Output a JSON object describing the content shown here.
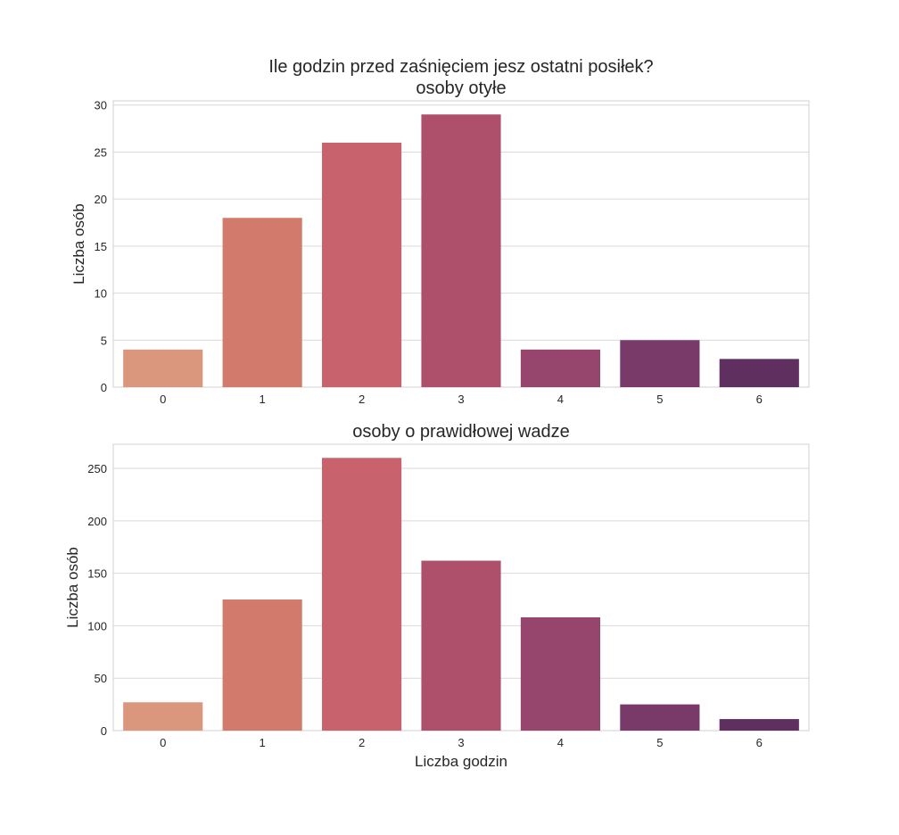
{
  "figure": {
    "suptitle_line1": "Ile godzin przed zaśnięciem jesz ostatni posiłek?"
  },
  "chart_data": [
    {
      "type": "bar",
      "title": "osoby otyłe",
      "xlabel": "",
      "ylabel": "Liczba osób",
      "categories": [
        "0",
        "1",
        "2",
        "3",
        "4",
        "5",
        "6"
      ],
      "values": [
        4,
        18,
        26,
        29,
        4,
        5,
        3
      ],
      "yticks": [
        0,
        5,
        10,
        15,
        20,
        25,
        30
      ],
      "ylim": [
        0,
        30.45
      ],
      "grid": true,
      "colors": [
        "#db977d",
        "#d27b6c",
        "#c8626c",
        "#ae4f6b",
        "#96456d",
        "#793a6a",
        "#5f2f5f"
      ]
    },
    {
      "type": "bar",
      "title": "osoby o prawidłowej wadze",
      "xlabel": "Liczba godzin",
      "ylabel": "Liczba osób",
      "categories": [
        "0",
        "1",
        "2",
        "3",
        "4",
        "5",
        "6"
      ],
      "values": [
        27,
        125,
        260,
        162,
        108,
        25,
        11
      ],
      "yticks": [
        0,
        50,
        100,
        150,
        200,
        250
      ],
      "ylim": [
        0,
        273
      ],
      "grid": true,
      "colors": [
        "#db977d",
        "#d27b6c",
        "#c8626c",
        "#ae4f6b",
        "#96456d",
        "#793a6a",
        "#5f2f5f"
      ]
    }
  ]
}
